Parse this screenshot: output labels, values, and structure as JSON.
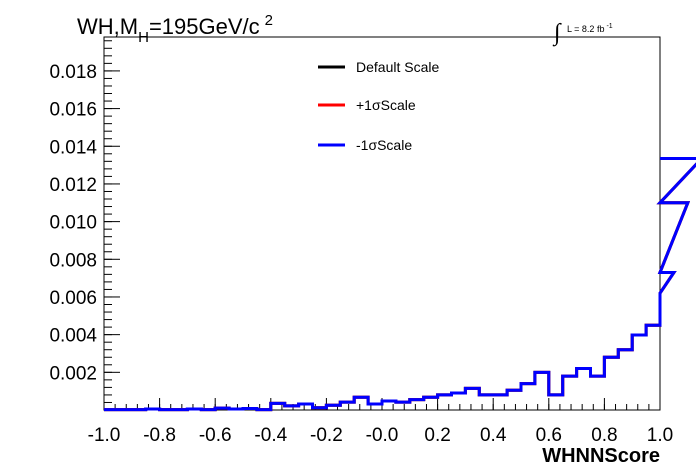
{
  "chart_data": {
    "type": "line",
    "title_prefix": "WH,M",
    "title_sub": "H",
    "title_rest": "=195GeV/c",
    "title_sup": "2",
    "lumi_text": "L = 8.2 fb",
    "lumi_sup": "-1",
    "lumi_integral": "∫",
    "xlabel": "WHNNScore",
    "ylabel": "",
    "xlim": [
      -1.0,
      1.0
    ],
    "ylim": [
      0.0,
      0.0198
    ],
    "x_ticks": [
      -1.0,
      -0.8,
      -0.6,
      -0.4,
      -0.2,
      0.0,
      0.2,
      0.4,
      0.6,
      0.8,
      1.0
    ],
    "x_tick_labels": [
      "-1.0",
      "-0.8",
      "-0.6",
      "-0.4",
      "-0.2",
      "-0.0",
      "0.2",
      "0.4",
      "0.6",
      "0.8",
      "1.0"
    ],
    "y_ticks": [
      0.002,
      0.004,
      0.006,
      0.008,
      0.01,
      0.012,
      0.014,
      0.016,
      0.018
    ],
    "y_tick_labels": [
      "0.002",
      "0.004",
      "0.006",
      "0.008",
      "0.010",
      "0.012",
      "0.014",
      "0.016",
      "0.018"
    ],
    "bin_edges_start": -1.0,
    "bin_width": 0.05,
    "series": [
      {
        "name": "Default Scale",
        "color": "#000000",
        "values": [
          2e-05,
          2e-05,
          2e-05,
          5e-05,
          2e-05,
          2e-05,
          5e-05,
          2e-05,
          0.0001,
          5e-05,
          8e-05,
          2e-05,
          0.00035,
          0.00022,
          0.00032,
          0.00012,
          0.00025,
          0.00042,
          0.00068,
          0.00032,
          0.00048,
          0.00042,
          0.00055,
          0.00068,
          0.0008,
          0.0009,
          0.00115,
          0.0008,
          0.0008,
          0.00105,
          0.0014,
          0.002,
          0.0008,
          0.0018,
          0.0022,
          0.0018,
          0.0028,
          0.0032,
          0.00398,
          0.0045,
          0.0062,
          0.0073,
          0.011,
          0.01335
        ]
      },
      {
        "name": "+1σScale",
        "color": "#ff0000",
        "values": [
          2e-05,
          2e-05,
          2e-05,
          5e-05,
          2e-05,
          2e-05,
          5e-05,
          2e-05,
          0.0001,
          5e-05,
          8e-05,
          2e-05,
          0.00035,
          0.00022,
          0.00032,
          0.00012,
          0.00025,
          0.00042,
          0.00068,
          0.00032,
          0.00048,
          0.00042,
          0.00055,
          0.00068,
          0.0008,
          0.0009,
          0.00115,
          0.0008,
          0.0008,
          0.00105,
          0.0014,
          0.002,
          0.0008,
          0.0018,
          0.0022,
          0.0018,
          0.0028,
          0.0032,
          0.00398,
          0.0045,
          0.0062,
          0.0073,
          0.011,
          0.01335
        ]
      },
      {
        "name": "-1σScale",
        "color": "#0000ff",
        "values": [
          2e-05,
          2e-05,
          2e-05,
          5e-05,
          2e-05,
          2e-05,
          5e-05,
          2e-05,
          0.0001,
          5e-05,
          8e-05,
          2e-05,
          0.00035,
          0.00022,
          0.00032,
          0.00012,
          0.00025,
          0.00042,
          0.00068,
          0.00032,
          0.00048,
          0.00042,
          0.00055,
          0.00068,
          0.0008,
          0.0009,
          0.00115,
          0.0008,
          0.0008,
          0.00105,
          0.0014,
          0.002,
          0.0008,
          0.0018,
          0.0022,
          0.0018,
          0.0028,
          0.0032,
          0.00398,
          0.0045,
          0.0062,
          0.0073,
          0.011,
          0.01335
        ]
      }
    ],
    "legend_position": "top-center",
    "grid": false
  }
}
